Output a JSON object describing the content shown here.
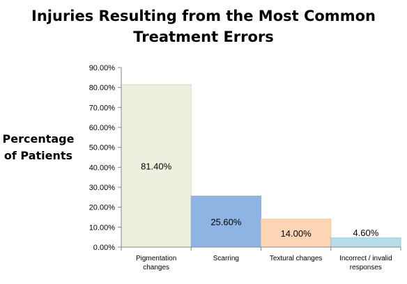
{
  "chart_data": {
    "type": "bar",
    "title_lines": [
      "Injuries Resulting from the Most Common",
      "Treatment Errors"
    ],
    "ylabel_lines": [
      "Percentage",
      "of Patients"
    ],
    "xlabel": "",
    "categories": [
      [
        "Pigmentation",
        "changes"
      ],
      [
        "Scarring"
      ],
      [
        "Textural changes"
      ],
      [
        "Incorrect / invalid",
        "responses"
      ]
    ],
    "values": [
      81.4,
      25.6,
      14.0,
      4.6
    ],
    "data_labels": [
      "81.40%",
      "25.60%",
      "14.00%",
      "4.60%"
    ],
    "bar_colors": [
      "#ebf1de",
      "#8eb4e3",
      "#fcd5b5",
      "#b7dde8"
    ],
    "bar_border_colors": [
      "#d7e4bd",
      "#95b3d7",
      "#fac090",
      "#93cddd"
    ],
    "ylim": [
      0,
      90
    ],
    "yticks": [
      0,
      10,
      20,
      30,
      40,
      50,
      60,
      70,
      80,
      90
    ],
    "ytick_labels": [
      "0.00%",
      "10.00%",
      "20.00%",
      "30.00%",
      "40.00%",
      "50.00%",
      "60.00%",
      "70.00%",
      "80.00%",
      "90.00%"
    ],
    "grid": false,
    "legend": "none",
    "axis_color": "#868686"
  }
}
